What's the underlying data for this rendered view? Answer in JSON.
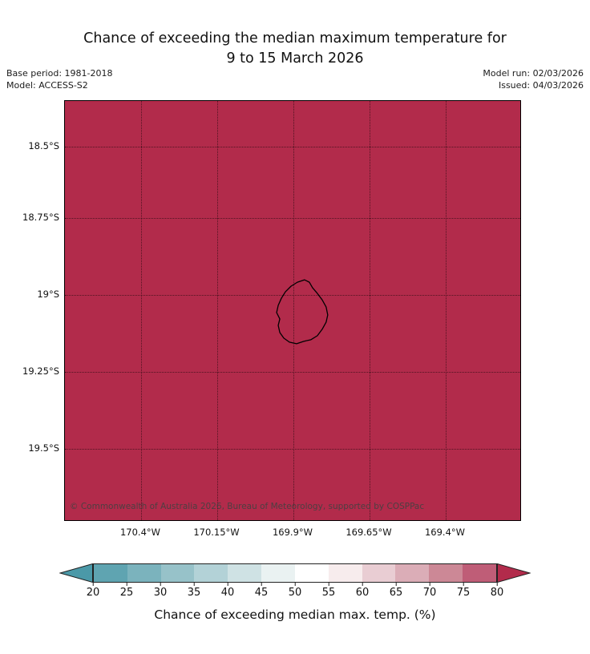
{
  "header": {
    "title_line1": "Chance of exceeding the median maximum temperature for",
    "title_line2": "9 to 15 March 2026",
    "base_period": "Base period: 1981-2018",
    "model": "Model: ACCESS-S2",
    "model_run": "Model run: 02/03/2026",
    "issued": "Issued: 04/03/2026"
  },
  "map": {
    "fill_color": "#b22b4b",
    "lat_labels": [
      "18.5°S",
      "18.75°S",
      "19°S",
      "19.25°S",
      "19.5°S"
    ],
    "lon_labels": [
      "170.4°W",
      "170.15°W",
      "169.9°W",
      "169.65°W",
      "169.4°W"
    ],
    "copyright": "© Commonwealth of Australia 2026, Bureau of Meteorology, supported by COSPPac"
  },
  "colorbar": {
    "ticks": [
      "20",
      "25",
      "30",
      "35",
      "40",
      "45",
      "50",
      "55",
      "60",
      "65",
      "70",
      "75",
      "80"
    ],
    "segment_colors": [
      "#5fa4b1",
      "#7bb3bd",
      "#97c2c9",
      "#b3d2d7",
      "#cfe2e4",
      "#eaf2f2",
      "#ffffff",
      "#f7eced",
      "#e9cdd3",
      "#dbadb7",
      "#cc8896",
      "#bf5d77"
    ],
    "left_arrow_color": "#4b99a8",
    "right_arrow_color": "#b22b4b",
    "label": "Chance of exceeding median max. temp. (%)"
  },
  "chart_data": {
    "type": "heatmap",
    "title": "Chance of exceeding the median maximum temperature for 9 to 15 March 2026",
    "x_ticks": [
      "170.4°W",
      "170.15°W",
      "169.9°W",
      "169.65°W",
      "169.4°W"
    ],
    "y_ticks": [
      "18.5°S",
      "18.75°S",
      "19°S",
      "19.25°S",
      "19.5°S"
    ],
    "values": "uniform field: chance exceeds 80% (deepest red of scale) over the entire mapped region",
    "annotations": [
      "island coastline outline centred near 169.9°W, 19.05°S"
    ],
    "colorbar_label": "Chance of exceeding median max. temp. (%)",
    "colorbar_ticks": [
      20,
      25,
      30,
      35,
      40,
      45,
      50,
      55,
      60,
      65,
      70,
      75,
      80
    ],
    "colorbar_range": [
      20,
      80
    ],
    "colorbar_extended_both_ends": true,
    "grid": "dotted graticule at labelled ticks",
    "legend_position": "bottom"
  }
}
